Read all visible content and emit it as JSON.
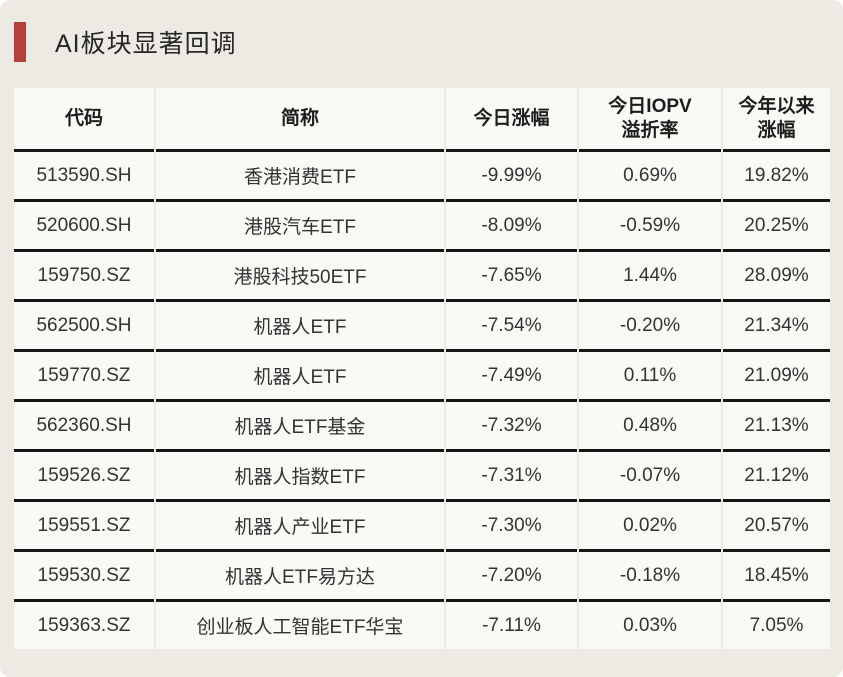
{
  "page": {
    "title": "AI板块显著回调",
    "accent_color": "#b5413f"
  },
  "table": {
    "headers": [
      {
        "key": "code",
        "label": "代码"
      },
      {
        "key": "name",
        "label": "简称"
      },
      {
        "key": "today_change",
        "label": "今日涨幅"
      },
      {
        "key": "iopv_premium",
        "label": "今日IOPV\n溢折率"
      },
      {
        "key": "ytd_change",
        "label": "今年以来\n涨幅"
      }
    ],
    "rows": [
      {
        "code": "513590.SH",
        "name": "香港消费ETF",
        "today_change": "-9.99%",
        "iopv_premium": "0.69%",
        "ytd_change": "19.82%"
      },
      {
        "code": "520600.SH",
        "name": "港股汽车ETF",
        "today_change": "-8.09%",
        "iopv_premium": "-0.59%",
        "ytd_change": "20.25%"
      },
      {
        "code": "159750.SZ",
        "name": "港股科技50ETF",
        "today_change": "-7.65%",
        "iopv_premium": "1.44%",
        "ytd_change": "28.09%"
      },
      {
        "code": "562500.SH",
        "name": "机器人ETF",
        "today_change": "-7.54%",
        "iopv_premium": "-0.20%",
        "ytd_change": "21.34%"
      },
      {
        "code": "159770.SZ",
        "name": "机器人ETF",
        "today_change": "-7.49%",
        "iopv_premium": "0.11%",
        "ytd_change": "21.09%"
      },
      {
        "code": "562360.SH",
        "name": "机器人ETF基金",
        "today_change": "-7.32%",
        "iopv_premium": "0.48%",
        "ytd_change": "21.13%"
      },
      {
        "code": "159526.SZ",
        "name": "机器人指数ETF",
        "today_change": "-7.31%",
        "iopv_premium": "-0.07%",
        "ytd_change": "21.12%"
      },
      {
        "code": "159551.SZ",
        "name": "机器人产业ETF",
        "today_change": "-7.30%",
        "iopv_premium": "0.02%",
        "ytd_change": "20.57%"
      },
      {
        "code": "159530.SZ",
        "name": "机器人ETF易方达",
        "today_change": "-7.20%",
        "iopv_premium": "-0.18%",
        "ytd_change": "18.45%"
      },
      {
        "code": "159363.SZ",
        "name": "创业板人工智能ETF华宝",
        "today_change": "-7.11%",
        "iopv_premium": "0.03%",
        "ytd_change": "7.05%"
      }
    ]
  },
  "chart_data": {
    "type": "table",
    "title": "AI板块显著回调",
    "columns": [
      "代码",
      "简称",
      "今日涨幅",
      "今日IOPV溢折率",
      "今年以来涨幅"
    ],
    "rows": [
      [
        "513590.SH",
        "香港消费ETF",
        "-9.99%",
        "0.69%",
        "19.82%"
      ],
      [
        "520600.SH",
        "港股汽车ETF",
        "-8.09%",
        "-0.59%",
        "20.25%"
      ],
      [
        "159750.SZ",
        "港股科技50ETF",
        "-7.65%",
        "1.44%",
        "28.09%"
      ],
      [
        "562500.SH",
        "机器人ETF",
        "-7.54%",
        "-0.20%",
        "21.34%"
      ],
      [
        "159770.SZ",
        "机器人ETF",
        "-7.49%",
        "0.11%",
        "21.09%"
      ],
      [
        "562360.SH",
        "机器人ETF基金",
        "-7.32%",
        "0.48%",
        "21.13%"
      ],
      [
        "159526.SZ",
        "机器人指数ETF",
        "-7.31%",
        "-0.07%",
        "21.12%"
      ],
      [
        "159551.SZ",
        "机器人产业ETF",
        "-7.30%",
        "0.02%",
        "20.57%"
      ],
      [
        "159530.SZ",
        "机器人ETF易方达",
        "-7.20%",
        "-0.18%",
        "18.45%"
      ],
      [
        "159363.SZ",
        "创业板人工智能ETF华宝",
        "-7.11%",
        "0.03%",
        "7.05%"
      ]
    ]
  }
}
